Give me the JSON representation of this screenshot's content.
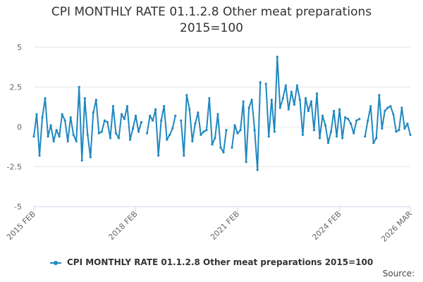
{
  "colors": {
    "series": "#1f88c0",
    "grid": "#e6e6e6",
    "axis": "#ccd6eb"
  },
  "chart_data": {
    "type": "line",
    "title": "CPI MONTHLY RATE 01.1.2.8 Other meat preparations",
    "subtitle": "2015=100",
    "xlabel": "",
    "ylabel": "",
    "ylim": [
      -5,
      5
    ],
    "yticks": [
      -5,
      -2.5,
      0,
      2.5,
      5
    ],
    "ytick_labels": [
      "-5",
      "-2.5",
      "0",
      "2.5",
      "5"
    ],
    "xticks": [
      {
        "label": "2015 FEB",
        "index": 0
      },
      {
        "label": "2018 FEB",
        "index": 36
      },
      {
        "label": "2021 FEB",
        "index": 72
      },
      {
        "label": "2024 FEB",
        "index": 108
      },
      {
        "label": "2026 MAR",
        "index": 133
      }
    ],
    "grid": true,
    "legend_position": "bottom-center",
    "series": [
      {
        "name": "CPI MONTHLY RATE 01.1.2.8 Other meat preparations 2015=100",
        "values": [
          -0.6,
          0.8,
          -1.8,
          0.6,
          1.8,
          -0.6,
          0.1,
          -0.9,
          -0.2,
          -0.6,
          0.8,
          0.4,
          -0.9,
          0.6,
          -0.5,
          -0.9,
          2.5,
          -2.1,
          1.8,
          -0.5,
          -1.9,
          0.9,
          1.7,
          -0.4,
          -0.3,
          0.4,
          0.3,
          -0.7,
          1.3,
          -0.4,
          -0.7,
          0.8,
          0.5,
          1.3,
          -0.8,
          -0.1,
          0.7,
          -0.3,
          0.3,
          null,
          -0.4,
          0.7,
          0.4,
          1.1,
          -1.8,
          0.4,
          1.3,
          -0.8,
          -0.5,
          -0.1,
          0.7,
          null,
          0.4,
          -1.8,
          2.0,
          1.1,
          -0.9,
          0.2,
          0.9,
          -0.5,
          -0.3,
          -0.2,
          1.8,
          -1.1,
          -0.7,
          0.8,
          -1.3,
          -1.6,
          -0.2,
          null,
          -1.3,
          0.1,
          -0.4,
          -0.2,
          1.6,
          -2.2,
          1.2,
          1.7,
          -0.2,
          -2.7,
          2.8,
          null,
          2.7,
          -0.6,
          1.7,
          -0.3,
          4.4,
          1.2,
          1.8,
          2.6,
          1.1,
          2.2,
          1.4,
          2.6,
          1.7,
          -0.5,
          1.8,
          1.0,
          1.6,
          -0.2,
          2.1,
          -0.7,
          0.7,
          0.1,
          -1.0,
          -0.3,
          1.0,
          -0.6,
          1.1,
          -0.7,
          0.6,
          0.5,
          0.2,
          -0.4,
          0.4,
          0.5,
          null,
          -0.6,
          0.4,
          1.3,
          -1.0,
          -0.7,
          2.0,
          -0.1,
          1.0,
          1.2,
          1.3,
          0.8,
          -0.3,
          -0.2,
          1.2,
          -0.1,
          0.2,
          -0.5
        ]
      }
    ]
  },
  "legend": {
    "label": "CPI MONTHLY RATE 01.1.2.8 Other meat preparations 2015=100"
  },
  "footer": {
    "source_label": "Source:"
  }
}
